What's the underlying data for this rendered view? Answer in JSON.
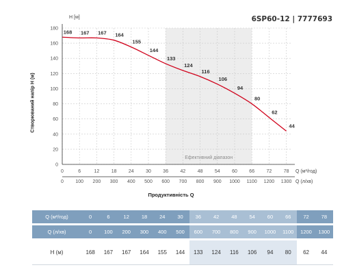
{
  "model_label": "6SP60-12 | 7777693",
  "chart_data": {
    "type": "line",
    "title": "6SP60-12 | 7777693",
    "y_unit_label": "H [м]",
    "ylabel": "Створюваний напір H (м)",
    "xlabel": "Продуктивність Q",
    "x_axis_label_1": "Q (м³/год)",
    "x_axis_label_2": "Q (л/хв)",
    "ylim": [
      0,
      180
    ],
    "xlim": [
      0,
      80
    ],
    "y_ticks": [
      0,
      20,
      40,
      60,
      80,
      100,
      120,
      140,
      160,
      180
    ],
    "x_ticks_m3h": [
      0,
      6,
      12,
      18,
      24,
      30,
      36,
      42,
      48,
      54,
      60,
      66,
      72,
      78
    ],
    "x_ticks_lmin": [
      0,
      100,
      200,
      300,
      400,
      500,
      600,
      700,
      800,
      900,
      1000,
      1100,
      1200,
      1300
    ],
    "efficient_range": {
      "label": "Ефективний діапазон",
      "from": 36,
      "to": 66
    },
    "grid": true,
    "series": [
      {
        "x": [
          0,
          6,
          12,
          18,
          24,
          30,
          36,
          42,
          48,
          54,
          60,
          66,
          72,
          78
        ],
        "values": [
          168,
          167,
          167,
          164,
          155,
          144,
          133,
          124,
          116,
          106,
          94,
          80,
          62,
          44
        ],
        "color": "#d0021b"
      }
    ]
  },
  "table": {
    "header_q_m3h": "Q (м³/год)",
    "header_q_lmin": "Q (л/хв)",
    "header_h": "H (м)",
    "efficient_columns": [
      6,
      7,
      8,
      9,
      10,
      11
    ],
    "q_m3h": [
      "0",
      "6",
      "12",
      "18",
      "24",
      "30",
      "36",
      "42",
      "48",
      "54",
      "60",
      "66",
      "72",
      "78"
    ],
    "q_lmin": [
      "0",
      "100",
      "200",
      "300",
      "400",
      "500",
      "600",
      "700",
      "800",
      "900",
      "1000",
      "1100",
      "1200",
      "1300"
    ],
    "h": [
      "168",
      "167",
      "167",
      "164",
      "155",
      "144",
      "133",
      "124",
      "116",
      "106",
      "94",
      "80",
      "62",
      "44"
    ]
  }
}
